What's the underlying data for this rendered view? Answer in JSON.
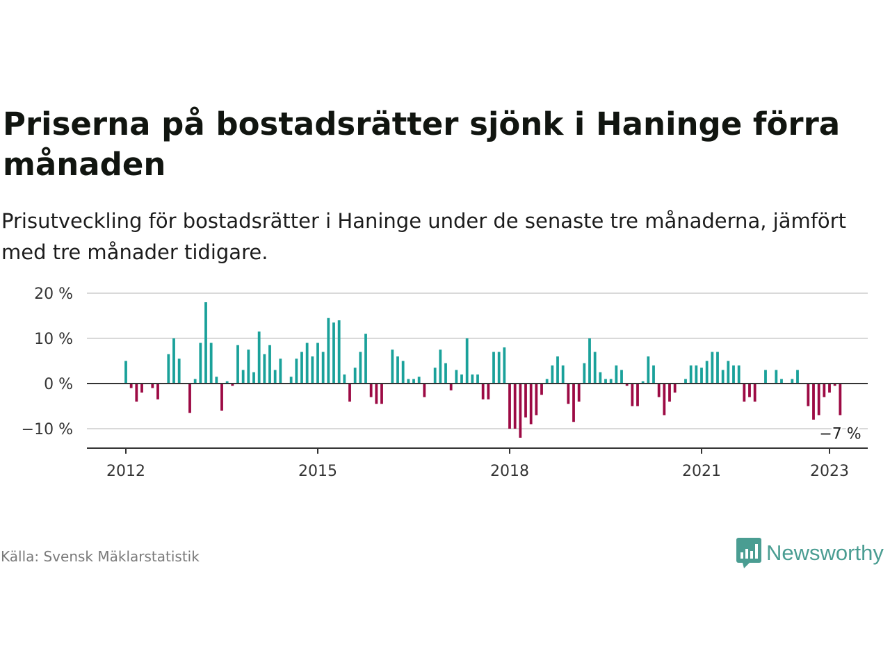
{
  "title": "Priserna på bostadsrätter sjönk i Haninge förra månaden",
  "subtitle": "Prisutveckling för bostadsrätter i Haninge under de senaste tre månaderna, jämfört med tre månader tidigare.",
  "source": "Källa: Svensk Mäklarstatistik",
  "logo": {
    "text": "Newsworthy",
    "icon": "newsworthy-bar-chart-icon",
    "color": "#4a9d92"
  },
  "colors": {
    "positive": "#1aa19a",
    "negative": "#9c0a44",
    "axis": "#333333",
    "grid": "#d9d9d9"
  },
  "chart_data": {
    "type": "bar",
    "title": "",
    "xlabel": "",
    "ylabel": "",
    "ylim": [
      -14,
      20
    ],
    "grid": true,
    "y_ticks": [
      {
        "value": 20,
        "label": "20 %"
      },
      {
        "value": 10,
        "label": "10 %"
      },
      {
        "value": 0,
        "label": "0 %"
      },
      {
        "value": -10,
        "label": "−10 %"
      }
    ],
    "x_ticks": [
      {
        "value": 2012.0,
        "label": "2012"
      },
      {
        "value": 2015.0,
        "label": "2015"
      },
      {
        "value": 2018.0,
        "label": "2018"
      },
      {
        "value": 2021.0,
        "label": "2021"
      },
      {
        "value": 2023.0,
        "label": "2023"
      }
    ],
    "start": "2012-01",
    "values": [
      5,
      -1,
      -4,
      -2,
      0,
      -1,
      -3.5,
      0,
      6.5,
      10,
      5.5,
      0,
      -6.5,
      1,
      9,
      18,
      9,
      1.5,
      -6,
      0.5,
      -0.5,
      8.5,
      3,
      7.5,
      2.5,
      11.5,
      6.5,
      8.5,
      3,
      5.5,
      0,
      1.5,
      5.5,
      7,
      9,
      6,
      9,
      7,
      14.5,
      13.5,
      14,
      2,
      -4,
      3.5,
      7,
      11,
      -3,
      -4.5,
      -4.5,
      0,
      7.5,
      6,
      5,
      1,
      1,
      1.5,
      -3,
      0,
      3.5,
      7.5,
      4.5,
      -1.5,
      3,
      2,
      10,
      2,
      2,
      -3.5,
      -3.5,
      7,
      7,
      8,
      -10,
      -10,
      -12,
      -7.5,
      -9,
      -7,
      -2.5,
      1,
      4,
      6,
      4,
      -4.5,
      -8.5,
      -4,
      4.5,
      10,
      7,
      2.5,
      1,
      1,
      4,
      3,
      -0.5,
      -5,
      -5,
      0.5,
      6,
      4,
      -3,
      -7,
      -4,
      -2,
      0,
      1,
      4,
      4,
      3.5,
      5,
      7,
      7,
      3,
      5,
      4,
      4,
      -4,
      -3,
      -4,
      0,
      3,
      0,
      3,
      1,
      0,
      1,
      3,
      0,
      -5,
      -8,
      -7,
      -3,
      -2,
      -0.5,
      -7
    ],
    "annotations": [
      {
        "text": "−7 %",
        "target": "last"
      }
    ]
  }
}
